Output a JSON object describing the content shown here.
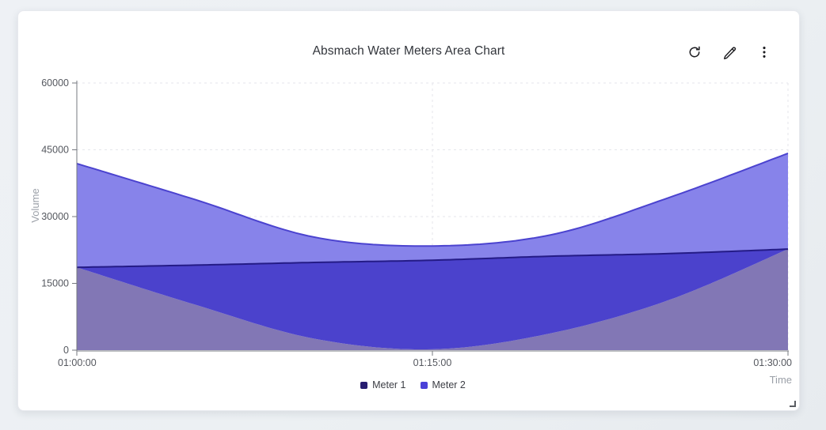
{
  "header": {
    "title": "Absmach Water Meters Area Chart",
    "toolbar": [
      {
        "name": "refresh",
        "icon": "refresh-icon"
      },
      {
        "name": "edit",
        "icon": "pencil-icon"
      },
      {
        "name": "menu",
        "icon": "kebab-menu-icon"
      }
    ]
  },
  "card": {
    "background": "#ffffff",
    "resize_icon": "corner-resize-icon"
  },
  "page": {
    "background": "#edf0f4"
  },
  "chart_data": {
    "type": "area",
    "title": "Absmach Water Meters Area Chart",
    "xlabel": "Time",
    "ylabel": "Volume",
    "x": [
      "01:00:00",
      "01:05:00",
      "01:10:00",
      "01:15:00",
      "01:20:00",
      "01:25:00",
      "01:30:00"
    ],
    "x_ticks_shown": [
      "01:00:00",
      "01:15:00",
      "01:30:00"
    ],
    "y_ticks": [
      0,
      15000,
      30000,
      45000,
      60000
    ],
    "ylim": [
      0,
      60000
    ],
    "grid": "dashed",
    "vertical_grid_at": [
      "01:15:00",
      "01:30:00"
    ],
    "legend_position": "bottom",
    "series": [
      {
        "name": "Meter 1",
        "color": "#271D70",
        "line_color": "#241B86",
        "values": [
          18600,
          19100,
          19700,
          20200,
          21100,
          21700,
          22700
        ]
      },
      {
        "name": "Meter 2",
        "color": "#4A41D8",
        "line_color": "#4B43CF",
        "values": [
          41900,
          33800,
          25400,
          23400,
          25900,
          34300,
          44200
        ]
      }
    ],
    "fill_overlap_boundary": [
      18600,
      10200,
      2600,
      200,
      3800,
      11300,
      22700
    ],
    "region_colors": {
      "meter1_only": "#8277B5",
      "overlap": "#4B42CC",
      "meter2_only": "#8783EA"
    },
    "axis_color": "#75787f",
    "tick_label_color": "#55585f",
    "axis_name_color": "#9ba0a8",
    "grid_color": "#e5e6eb"
  }
}
